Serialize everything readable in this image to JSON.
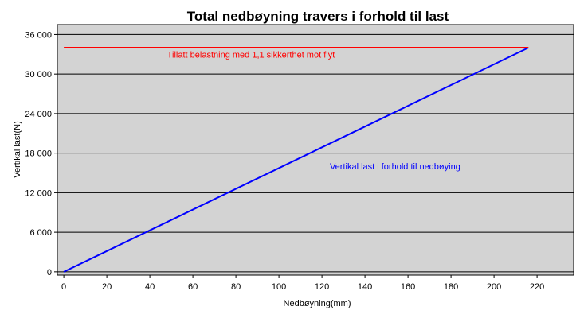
{
  "chart_data": {
    "type": "line",
    "title": "Total nedbøyning travers i forhold til last",
    "xlabel": "Nedbøyning(mm)",
    "ylabel": "Vertikal last(N)",
    "xlim": [
      -3,
      237
    ],
    "ylim": [
      -500,
      37500
    ],
    "xticks": [
      0,
      20,
      40,
      60,
      80,
      100,
      120,
      140,
      160,
      180,
      200,
      220
    ],
    "yticks": [
      0,
      6000,
      12000,
      18000,
      24000,
      30000,
      36000
    ],
    "ytick_labels": [
      "0",
      "6 000",
      "12 000",
      "18 000",
      "24 000",
      "30 000",
      "36 000"
    ],
    "grid": "horizontal",
    "background_color": "#d3d3d3",
    "series": [
      {
        "name": "Vertikal last i forhold til nedbøying",
        "color": "#0000ff",
        "x": [
          0,
          216
        ],
        "y": [
          0,
          34000
        ],
        "label_at": [
          154,
          16000
        ]
      },
      {
        "name": "Tillatt belastning med 1,1 sikkerthet mot flyt",
        "color": "#ff0000",
        "x": [
          0,
          216
        ],
        "y": [
          34000,
          34000
        ],
        "label_at": [
          87,
          33000
        ]
      }
    ]
  }
}
